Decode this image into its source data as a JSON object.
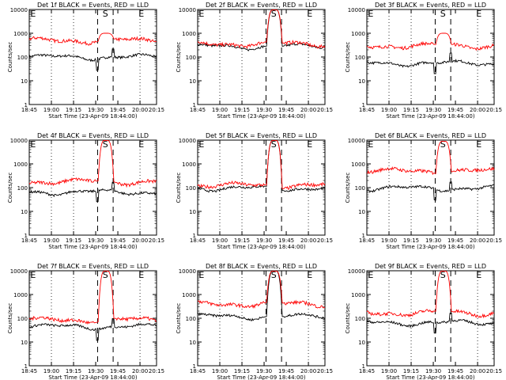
{
  "chart_data": [
    {
      "type": "line",
      "title": "Det 1f BLACK = Events, RED = LLD",
      "xlabel": "Start Time (23-Apr-09 18:44:00)",
      "ylabel": "Counts/sec",
      "y_scale": "log",
      "ylim": [
        1,
        10000
      ],
      "x_ticks": [
        "18:45",
        "19:00",
        "19:15",
        "19:30",
        "19:45",
        "20:00",
        "20:15"
      ],
      "y_ticks": [
        "1",
        "10",
        "100",
        "1000",
        "10000"
      ],
      "markers": [
        "E",
        "S",
        "E"
      ],
      "grid": "dotted vertical at 19:00, 19:15, 20:00",
      "series": [
        {
          "name": "Events",
          "color": "#000000",
          "baseline": 100,
          "peak": 100
        },
        {
          "name": "LLD",
          "color": "#ff0000",
          "baseline": 500,
          "peak": 1000
        }
      ]
    },
    {
      "type": "line",
      "title": "Det 2f BLACK = Events, RED = LLD",
      "xlabel": "Start Time (23-Apr-09 18:44:00)",
      "ylabel": "Counts/sec",
      "y_scale": "log",
      "ylim": [
        1,
        10000
      ],
      "x_ticks": [
        "18:45",
        "19:00",
        "19:15",
        "19:30",
        "19:45",
        "20:00",
        "20:15"
      ],
      "y_ticks": [
        "1",
        "10",
        "100",
        "1000",
        "10000"
      ],
      "markers": [
        "E",
        "S",
        "E"
      ],
      "grid": "dotted vertical at 19:00, 19:15, 20:00",
      "series": [
        {
          "name": "Events",
          "color": "#000000",
          "baseline": 280,
          "peak": 10000
        },
        {
          "name": "LLD",
          "color": "#ff0000",
          "baseline": 360,
          "peak": 10000
        }
      ]
    },
    {
      "type": "line",
      "title": "Det 3f BLACK = Events, RED = LLD",
      "xlabel": "Start Time (23-Apr-09 18:44:00)",
      "ylabel": "Counts/sec",
      "y_scale": "log",
      "ylim": [
        1,
        10000
      ],
      "x_ticks": [
        "18:45",
        "19:00",
        "19:15",
        "19:30",
        "19:45",
        "20:00",
        "20:15"
      ],
      "y_ticks": [
        "1",
        "10",
        "100",
        "1000",
        "10000"
      ],
      "markers": [
        "E",
        "S",
        "E"
      ],
      "grid": "dotted vertical at 19:00, 19:15, 20:00",
      "series": [
        {
          "name": "Events",
          "color": "#000000",
          "baseline": 55,
          "peak": 55
        },
        {
          "name": "LLD",
          "color": "#ff0000",
          "baseline": 300,
          "peak": 1000
        }
      ]
    },
    {
      "type": "line",
      "title": "Det 4f BLACK = Events, RED = LLD",
      "xlabel": "Start Time (23-Apr-09 18:44:00)",
      "ylabel": "Counts/sec",
      "y_scale": "log",
      "ylim": [
        1,
        10000
      ],
      "x_ticks": [
        "18:45",
        "19:00",
        "19:15",
        "19:30",
        "19:45",
        "20:00",
        "20:15"
      ],
      "y_ticks": [
        "1",
        "10",
        "100",
        "1000",
        "10000"
      ],
      "markers": [
        "E",
        "S",
        "E"
      ],
      "grid": "dotted vertical at 19:00, 19:15, 20:00",
      "series": [
        {
          "name": "Events",
          "color": "#000000",
          "baseline": 65,
          "peak": 65
        },
        {
          "name": "LLD",
          "color": "#ff0000",
          "baseline": 180,
          "peak": 10000
        }
      ]
    },
    {
      "type": "line",
      "title": "Det 5f BLACK = Events, RED = LLD",
      "xlabel": "Start Time (23-Apr-09 18:44:00)",
      "ylabel": "Counts/sec",
      "y_scale": "log",
      "ylim": [
        1,
        10000
      ],
      "x_ticks": [
        "18:45",
        "19:00",
        "19:15",
        "19:30",
        "19:45",
        "20:00",
        "20:15"
      ],
      "y_ticks": [
        "1",
        "10",
        "100",
        "1000",
        "10000"
      ],
      "markers": [
        "E",
        "S",
        "E"
      ],
      "grid": "dotted vertical at 19:00, 19:15, 20:00",
      "series": [
        {
          "name": "Events",
          "color": "#000000",
          "baseline": 95,
          "peak": 10000
        },
        {
          "name": "LLD",
          "color": "#ff0000",
          "baseline": 125,
          "peak": 10000
        }
      ]
    },
    {
      "type": "line",
      "title": "Det 6f BLACK = Events, RED = LLD",
      "xlabel": "Start Time (23-Apr-09 18:44:00)",
      "ylabel": "Counts/sec",
      "y_scale": "log",
      "ylim": [
        1,
        10000
      ],
      "x_ticks": [
        "18:45",
        "19:00",
        "19:15",
        "19:30",
        "19:45",
        "20:00",
        "20:15"
      ],
      "y_ticks": [
        "1",
        "10",
        "100",
        "1000",
        "10000"
      ],
      "markers": [
        "E",
        "S",
        "E"
      ],
      "grid": "dotted vertical at 19:00, 19:15, 20:00",
      "series": [
        {
          "name": "Events",
          "color": "#000000",
          "baseline": 95,
          "peak": 95
        },
        {
          "name": "LLD",
          "color": "#ff0000",
          "baseline": 500,
          "peak": 9000
        }
      ]
    },
    {
      "type": "line",
      "title": "Det 7f BLACK = Events, RED = LLD",
      "xlabel": "Start Time (23-Apr-09 18:44:00)",
      "ylabel": "Counts/sec",
      "y_scale": "log",
      "ylim": [
        1,
        10000
      ],
      "x_ticks": [
        "18:45",
        "19:00",
        "19:15",
        "19:30",
        "19:45",
        "20:00",
        "20:15"
      ],
      "y_ticks": [
        "1",
        "10",
        "100",
        "1000",
        "10000"
      ],
      "markers": [
        "E",
        "S",
        "E"
      ],
      "grid": "dotted vertical at 19:00, 19:15, 20:00",
      "series": [
        {
          "name": "Events",
          "color": "#000000",
          "baseline": 45,
          "peak": 45
        },
        {
          "name": "LLD",
          "color": "#ff0000",
          "baseline": 85,
          "peak": 10000
        }
      ]
    },
    {
      "type": "line",
      "title": "Det 8f BLACK = Events, RED = LLD",
      "xlabel": "Start Time (23-Apr-09 18:44:00)",
      "ylabel": "Counts/sec",
      "y_scale": "log",
      "ylim": [
        1,
        10000
      ],
      "x_ticks": [
        "18:45",
        "19:00",
        "19:15",
        "19:30",
        "19:45",
        "20:00",
        "20:15"
      ],
      "y_ticks": [
        "1",
        "10",
        "100",
        "1000",
        "10000"
      ],
      "markers": [
        "E",
        "S",
        "E"
      ],
      "grid": "dotted vertical at 19:00, 19:15, 20:00",
      "series": [
        {
          "name": "Events",
          "color": "#000000",
          "baseline": 120,
          "peak": 10000
        },
        {
          "name": "LLD",
          "color": "#ff0000",
          "baseline": 400,
          "peak": 10000
        }
      ]
    },
    {
      "type": "line",
      "title": "Det 9f BLACK = Events, RED = LLD",
      "xlabel": "Start Time (23-Apr-09 18:44:00)",
      "ylabel": "Counts/sec",
      "y_scale": "log",
      "ylim": [
        1,
        10000
      ],
      "x_ticks": [
        "18:45",
        "19:00",
        "19:15",
        "19:30",
        "19:45",
        "20:00",
        "20:15"
      ],
      "y_ticks": [
        "1",
        "10",
        "100",
        "1000",
        "10000"
      ],
      "markers": [
        "E",
        "S",
        "E"
      ],
      "grid": "dotted vertical at 19:00, 19:15, 20:00",
      "series": [
        {
          "name": "Events",
          "color": "#000000",
          "baseline": 65,
          "peak": 65
        },
        {
          "name": "LLD",
          "color": "#ff0000",
          "baseline": 170,
          "peak": 10000
        }
      ]
    }
  ]
}
